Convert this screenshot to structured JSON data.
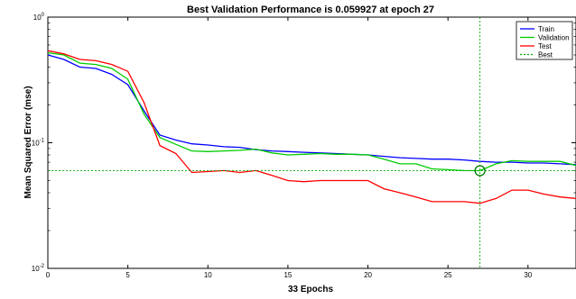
{
  "chart_data": {
    "type": "line",
    "title": "Best Validation Performance is 0.059927 at epoch 27",
    "xlabel": "33 Epochs",
    "ylabel": "Mean Squared Error  (mse)",
    "yscale": "log",
    "xlim": [
      0,
      33
    ],
    "ylim": [
      0.01,
      1
    ],
    "x_ticks": [
      0,
      5,
      10,
      15,
      20,
      25,
      30
    ],
    "y_ticks": [
      {
        "value": 1,
        "base": "10",
        "exp": "0"
      },
      {
        "value": 0.1,
        "base": "10",
        "exp": "-1"
      },
      {
        "value": 0.01,
        "base": "10",
        "exp": "-2"
      }
    ],
    "grid": false,
    "legend_placement": "top-right",
    "x": [
      0,
      1,
      2,
      3,
      4,
      5,
      6,
      7,
      8,
      9,
      10,
      11,
      12,
      13,
      14,
      15,
      16,
      17,
      18,
      19,
      20,
      21,
      22,
      23,
      24,
      25,
      26,
      27,
      28,
      29,
      30,
      31,
      32,
      33
    ],
    "series": [
      {
        "name": "Train",
        "color": "#0000ff",
        "values": [
          0.5,
          0.46,
          0.4,
          0.39,
          0.35,
          0.29,
          0.18,
          0.115,
          0.105,
          0.098,
          0.096,
          0.093,
          0.092,
          0.088,
          0.086,
          0.085,
          0.084,
          0.083,
          0.082,
          0.081,
          0.08,
          0.078,
          0.076,
          0.075,
          0.074,
          0.074,
          0.073,
          0.071,
          0.07,
          0.07,
          0.069,
          0.069,
          0.068,
          0.067
        ]
      },
      {
        "name": "Validation",
        "color": "#00cc00",
        "values": [
          0.52,
          0.5,
          0.43,
          0.42,
          0.39,
          0.32,
          0.17,
          0.11,
          0.097,
          0.086,
          0.085,
          0.086,
          0.087,
          0.089,
          0.083,
          0.08,
          0.081,
          0.082,
          0.081,
          0.081,
          0.08,
          0.074,
          0.068,
          0.068,
          0.062,
          0.061,
          0.06,
          0.0599,
          0.068,
          0.072,
          0.071,
          0.071,
          0.071,
          0.066
        ]
      },
      {
        "name": "Test",
        "color": "#ff0000",
        "values": [
          0.54,
          0.51,
          0.46,
          0.45,
          0.42,
          0.37,
          0.21,
          0.095,
          0.082,
          0.058,
          0.059,
          0.06,
          0.058,
          0.06,
          0.055,
          0.05,
          0.049,
          0.05,
          0.05,
          0.05,
          0.05,
          0.043,
          0.04,
          0.037,
          0.034,
          0.034,
          0.034,
          0.033,
          0.036,
          0.042,
          0.042,
          0.039,
          0.037,
          0.036
        ]
      }
    ],
    "best": {
      "name": "Best",
      "epoch": 27,
      "value": 0.059927,
      "color": "#00aa00"
    }
  }
}
